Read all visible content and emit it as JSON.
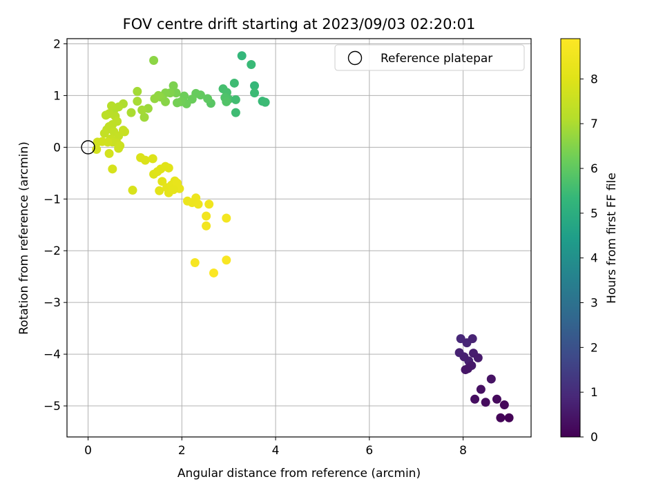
{
  "chart_data": {
    "type": "scatter",
    "title": "FOV centre drift starting at 2023/09/03 02:20:01",
    "xlabel": "Angular distance from reference (arcmin)",
    "ylabel": "Rotation from reference (arcmin)",
    "xlim": [
      -0.45,
      9.45
    ],
    "ylim": [
      -5.6,
      2.1
    ],
    "xticks": [
      0,
      2,
      4,
      6,
      8
    ],
    "yticks": [
      2,
      1,
      0,
      -1,
      -2,
      -3,
      -4,
      -5
    ],
    "xtick_labels": [
      "0",
      "2",
      "4",
      "6",
      "8"
    ],
    "ytick_labels": [
      "2",
      "1",
      "0",
      "−1",
      "−2",
      "−3",
      "−4",
      "−5"
    ],
    "grid": true,
    "legend": {
      "placement": "top-right",
      "entries": [
        "Reference platepar"
      ]
    },
    "reference_point": {
      "x": 0.0,
      "y": 0.0
    },
    "colorbar": {
      "label": "Hours from first FF file",
      "min": 0,
      "max": 8.9,
      "ticks": [
        0,
        1,
        2,
        3,
        4,
        5,
        6,
        7,
        8
      ],
      "tick_labels": [
        "0",
        "1",
        "2",
        "3",
        "4",
        "5",
        "6",
        "7",
        "8"
      ],
      "colormap": "viridis"
    },
    "points": [
      {
        "x": 7.95,
        "y": -3.7,
        "c": 0.9
      },
      {
        "x": 8.08,
        "y": -3.78,
        "c": 0.85
      },
      {
        "x": 8.2,
        "y": -3.7,
        "c": 0.8
      },
      {
        "x": 7.92,
        "y": -3.97,
        "c": 0.75
      },
      {
        "x": 8.02,
        "y": -4.05,
        "c": 0.72
      },
      {
        "x": 8.12,
        "y": -4.13,
        "c": 0.7
      },
      {
        "x": 8.22,
        "y": -3.98,
        "c": 0.65
      },
      {
        "x": 8.32,
        "y": -4.07,
        "c": 0.6
      },
      {
        "x": 8.18,
        "y": -4.22,
        "c": 0.55
      },
      {
        "x": 8.1,
        "y": -4.28,
        "c": 0.5
      },
      {
        "x": 8.05,
        "y": -4.3,
        "c": 0.45
      },
      {
        "x": 8.6,
        "y": -4.48,
        "c": 0.4
      },
      {
        "x": 8.38,
        "y": -4.68,
        "c": 0.35
      },
      {
        "x": 8.25,
        "y": -4.87,
        "c": 0.3
      },
      {
        "x": 8.48,
        "y": -4.93,
        "c": 0.25
      },
      {
        "x": 8.72,
        "y": -4.87,
        "c": 0.2
      },
      {
        "x": 8.88,
        "y": -4.98,
        "c": 0.15
      },
      {
        "x": 8.8,
        "y": -5.23,
        "c": 0.1
      },
      {
        "x": 8.98,
        "y": -5.23,
        "c": 0.05
      },
      {
        "x": 3.28,
        "y": 1.77,
        "c": 5.3
      },
      {
        "x": 3.48,
        "y": 1.6,
        "c": 5.4
      },
      {
        "x": 3.12,
        "y": 1.24,
        "c": 5.5
      },
      {
        "x": 3.55,
        "y": 1.19,
        "c": 5.35
      },
      {
        "x": 3.55,
        "y": 1.05,
        "c": 5.45
      },
      {
        "x": 2.88,
        "y": 1.13,
        "c": 5.6
      },
      {
        "x": 2.96,
        "y": 1.06,
        "c": 5.65
      },
      {
        "x": 3.0,
        "y": 0.93,
        "c": 5.7
      },
      {
        "x": 2.92,
        "y": 0.96,
        "c": 5.75
      },
      {
        "x": 3.15,
        "y": 0.92,
        "c": 5.55
      },
      {
        "x": 3.72,
        "y": 0.89,
        "c": 5.4
      },
      {
        "x": 3.78,
        "y": 0.87,
        "c": 5.45
      },
      {
        "x": 3.15,
        "y": 0.67,
        "c": 5.5
      },
      {
        "x": 2.95,
        "y": 0.88,
        "c": 5.8
      },
      {
        "x": 2.62,
        "y": 0.85,
        "c": 5.9
      },
      {
        "x": 2.55,
        "y": 0.94,
        "c": 6.0
      },
      {
        "x": 2.4,
        "y": 1.01,
        "c": 6.05
      },
      {
        "x": 2.3,
        "y": 1.04,
        "c": 6.1
      },
      {
        "x": 2.22,
        "y": 0.93,
        "c": 6.15
      },
      {
        "x": 2.1,
        "y": 0.84,
        "c": 6.2
      },
      {
        "x": 2.05,
        "y": 0.99,
        "c": 6.2
      },
      {
        "x": 1.98,
        "y": 0.88,
        "c": 6.25
      },
      {
        "x": 1.9,
        "y": 0.86,
        "c": 6.3
      },
      {
        "x": 1.88,
        "y": 1.05,
        "c": 6.35
      },
      {
        "x": 1.82,
        "y": 1.19,
        "c": 6.4
      },
      {
        "x": 1.75,
        "y": 1.05,
        "c": 6.45
      },
      {
        "x": 1.65,
        "y": 1.05,
        "c": 6.5
      },
      {
        "x": 1.65,
        "y": 0.88,
        "c": 6.55
      },
      {
        "x": 1.55,
        "y": 0.97,
        "c": 6.6
      },
      {
        "x": 1.5,
        "y": 1.0,
        "c": 6.65
      },
      {
        "x": 1.42,
        "y": 0.94,
        "c": 6.7
      },
      {
        "x": 1.4,
        "y": 1.68,
        "c": 6.6
      },
      {
        "x": 1.28,
        "y": 0.75,
        "c": 6.8
      },
      {
        "x": 1.2,
        "y": 0.58,
        "c": 6.85
      },
      {
        "x": 1.15,
        "y": 0.72,
        "c": 6.9
      },
      {
        "x": 1.05,
        "y": 1.08,
        "c": 6.9
      },
      {
        "x": 1.05,
        "y": 0.89,
        "c": 6.95
      },
      {
        "x": 0.92,
        "y": 0.67,
        "c": 7.0
      },
      {
        "x": 0.75,
        "y": 0.84,
        "c": 7.05
      },
      {
        "x": 0.65,
        "y": 0.78,
        "c": 7.1
      },
      {
        "x": 0.55,
        "y": 0.72,
        "c": 7.1
      },
      {
        "x": 0.5,
        "y": 0.8,
        "c": 7.15
      },
      {
        "x": 0.58,
        "y": 0.6,
        "c": 7.2
      },
      {
        "x": 0.45,
        "y": 0.65,
        "c": 7.2
      },
      {
        "x": 0.38,
        "y": 0.62,
        "c": 7.25
      },
      {
        "x": 0.62,
        "y": 0.5,
        "c": 7.3
      },
      {
        "x": 0.52,
        "y": 0.44,
        "c": 7.3
      },
      {
        "x": 0.45,
        "y": 0.4,
        "c": 7.35
      },
      {
        "x": 0.4,
        "y": 0.34,
        "c": 7.35
      },
      {
        "x": 0.35,
        "y": 0.27,
        "c": 7.4
      },
      {
        "x": 0.55,
        "y": 0.3,
        "c": 7.4
      },
      {
        "x": 0.65,
        "y": 0.22,
        "c": 7.45
      },
      {
        "x": 0.75,
        "y": 0.33,
        "c": 7.45
      },
      {
        "x": 0.78,
        "y": 0.3,
        "c": 7.5
      },
      {
        "x": 0.48,
        "y": 0.16,
        "c": 7.5
      },
      {
        "x": 0.52,
        "y": 0.1,
        "c": 7.55
      },
      {
        "x": 0.62,
        "y": 0.08,
        "c": 7.55
      },
      {
        "x": 0.68,
        "y": 0.03,
        "c": 7.6
      },
      {
        "x": 0.65,
        "y": -0.02,
        "c": 7.6
      },
      {
        "x": 0.42,
        "y": 0.1,
        "c": 7.65
      },
      {
        "x": 0.3,
        "y": 0.11,
        "c": 7.7
      },
      {
        "x": 0.2,
        "y": 0.1,
        "c": 7.7
      },
      {
        "x": 0.18,
        "y": -0.04,
        "c": 7.75
      },
      {
        "x": 0.45,
        "y": -0.12,
        "c": 7.75
      },
      {
        "x": 0.52,
        "y": -0.42,
        "c": 7.8
      },
      {
        "x": 0.95,
        "y": -0.83,
        "c": 7.85
      },
      {
        "x": 1.12,
        "y": -0.2,
        "c": 7.9
      },
      {
        "x": 1.22,
        "y": -0.25,
        "c": 7.9
      },
      {
        "x": 1.38,
        "y": -0.22,
        "c": 7.95
      },
      {
        "x": 1.4,
        "y": -0.52,
        "c": 7.95
      },
      {
        "x": 1.48,
        "y": -0.47,
        "c": 8.0
      },
      {
        "x": 1.55,
        "y": -0.42,
        "c": 8.0
      },
      {
        "x": 1.65,
        "y": -0.37,
        "c": 8.05
      },
      {
        "x": 1.72,
        "y": -0.4,
        "c": 8.05
      },
      {
        "x": 1.58,
        "y": -0.66,
        "c": 8.1
      },
      {
        "x": 1.52,
        "y": -0.84,
        "c": 8.1
      },
      {
        "x": 1.68,
        "y": -0.78,
        "c": 8.15
      },
      {
        "x": 1.72,
        "y": -0.88,
        "c": 8.15
      },
      {
        "x": 1.78,
        "y": -0.73,
        "c": 8.2
      },
      {
        "x": 1.85,
        "y": -0.65,
        "c": 8.2
      },
      {
        "x": 1.9,
        "y": -0.69,
        "c": 8.25
      },
      {
        "x": 1.95,
        "y": -0.8,
        "c": 8.25
      },
      {
        "x": 1.82,
        "y": -0.82,
        "c": 8.2
      },
      {
        "x": 2.12,
        "y": -1.04,
        "c": 8.35
      },
      {
        "x": 2.22,
        "y": -1.07,
        "c": 8.4
      },
      {
        "x": 2.3,
        "y": -0.98,
        "c": 8.4
      },
      {
        "x": 2.35,
        "y": -1.1,
        "c": 8.45
      },
      {
        "x": 2.58,
        "y": -1.1,
        "c": 8.5
      },
      {
        "x": 2.52,
        "y": -1.33,
        "c": 8.55
      },
      {
        "x": 2.52,
        "y": -1.52,
        "c": 8.55
      },
      {
        "x": 2.95,
        "y": -1.37,
        "c": 8.6
      },
      {
        "x": 2.28,
        "y": -2.23,
        "c": 8.7
      },
      {
        "x": 2.95,
        "y": -2.18,
        "c": 8.75
      },
      {
        "x": 2.68,
        "y": -2.43,
        "c": 8.85
      }
    ]
  }
}
